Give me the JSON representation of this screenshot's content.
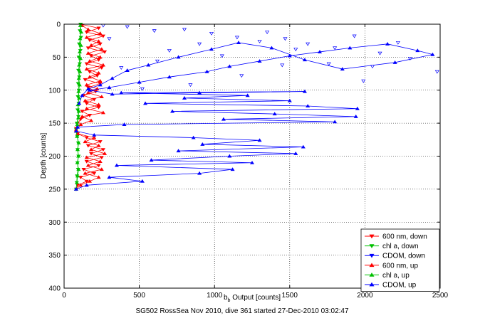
{
  "chart_data": {
    "type": "scatter",
    "xlabel": "b",
    "xlabel_sub": "b",
    "xlabel_rest": " Output [counts]",
    "ylabel": "Depth [counts]",
    "caption": "SG502 RossSea Nov 2010, dive 361 started 27-Dec-2010 03:02:47",
    "xlim": [
      0,
      2500
    ],
    "ylim": [
      0,
      400
    ],
    "y_reversed": true,
    "grid": true,
    "legend_position": "bottom-right",
    "xticks": [
      0,
      500,
      1000,
      1500,
      2000,
      2500
    ],
    "yticks": [
      0,
      50,
      100,
      150,
      200,
      250,
      300,
      350,
      400
    ],
    "series": [
      {
        "name": "600 nm, down",
        "color": "#ff0000",
        "marker": "triangle-down",
        "line": true,
        "points": [
          [
            110,
            0
          ],
          [
            230,
            6
          ],
          [
            150,
            12
          ],
          [
            260,
            18
          ],
          [
            170,
            24
          ],
          [
            240,
            30
          ],
          [
            160,
            36
          ],
          [
            270,
            42
          ],
          [
            180,
            48
          ],
          [
            230,
            54
          ],
          [
            150,
            60
          ],
          [
            250,
            66
          ],
          [
            170,
            72
          ],
          [
            220,
            78
          ],
          [
            140,
            84
          ],
          [
            240,
            90
          ],
          [
            160,
            96
          ],
          [
            210,
            102
          ],
          [
            130,
            108
          ],
          [
            200,
            114
          ],
          [
            150,
            120
          ],
          [
            230,
            126
          ],
          [
            120,
            132
          ],
          [
            170,
            138
          ],
          [
            110,
            144
          ],
          [
            90,
            150
          ],
          [
            80,
            158
          ],
          [
            90,
            166
          ],
          [
            150,
            172
          ],
          [
            240,
            178
          ],
          [
            160,
            184
          ],
          [
            260,
            190
          ],
          [
            180,
            196
          ],
          [
            250,
            202
          ],
          [
            150,
            208
          ],
          [
            230,
            214
          ],
          [
            130,
            220
          ],
          [
            200,
            226
          ],
          [
            110,
            232
          ],
          [
            150,
            238
          ],
          [
            90,
            244
          ],
          [
            80,
            250
          ]
        ]
      },
      {
        "name": "chl a, down",
        "color": "#00c000",
        "marker": "triangle-down",
        "line": true,
        "points": [
          [
            110,
            0
          ],
          [
            105,
            10
          ],
          [
            112,
            20
          ],
          [
            100,
            30
          ],
          [
            108,
            40
          ],
          [
            98,
            50
          ],
          [
            104,
            60
          ],
          [
            95,
            70
          ],
          [
            101,
            80
          ],
          [
            93,
            90
          ],
          [
            99,
            100
          ],
          [
            92,
            110
          ],
          [
            97,
            120
          ],
          [
            90,
            130
          ],
          [
            95,
            140
          ],
          [
            85,
            150
          ],
          [
            80,
            160
          ],
          [
            88,
            170
          ],
          [
            94,
            180
          ],
          [
            90,
            190
          ],
          [
            96,
            200
          ],
          [
            89,
            210
          ],
          [
            93,
            220
          ],
          [
            86,
            230
          ],
          [
            84,
            240
          ],
          [
            80,
            250
          ]
        ]
      },
      {
        "name": "CDOM, down",
        "color": "#0000ff",
        "marker": "triangle-down",
        "line": false,
        "points": [
          [
            260,
            2
          ],
          [
            420,
            4
          ],
          [
            600,
            10
          ],
          [
            800,
            8
          ],
          [
            980,
            14
          ],
          [
            1150,
            20
          ],
          [
            1300,
            26
          ],
          [
            1470,
            22
          ],
          [
            1620,
            30
          ],
          [
            1800,
            36
          ],
          [
            1930,
            18
          ],
          [
            2100,
            44
          ],
          [
            2300,
            52
          ],
          [
            2480,
            72
          ],
          [
            1990,
            86
          ],
          [
            1450,
            62
          ],
          [
            1180,
            78
          ],
          [
            840,
            92
          ],
          [
            520,
            98
          ],
          [
            380,
            66
          ],
          [
            700,
            40
          ],
          [
            1050,
            48
          ],
          [
            1350,
            12
          ],
          [
            1760,
            60
          ],
          [
            2220,
            28
          ],
          [
            900,
            30
          ],
          [
            1540,
            38
          ],
          [
            300,
            22
          ],
          [
            620,
            56
          ],
          [
            2050,
            64
          ]
        ]
      },
      {
        "name": "600 nm, up",
        "color": "#ff0000",
        "marker": "triangle-up",
        "line": true,
        "points": [
          [
            80,
            250
          ],
          [
            110,
            244
          ],
          [
            170,
            238
          ],
          [
            230,
            232
          ],
          [
            140,
            226
          ],
          [
            250,
            220
          ],
          [
            160,
            214
          ],
          [
            240,
            208
          ],
          [
            150,
            202
          ],
          [
            270,
            196
          ],
          [
            180,
            190
          ],
          [
            230,
            184
          ],
          [
            140,
            178
          ],
          [
            200,
            172
          ],
          [
            90,
            166
          ],
          [
            80,
            160
          ],
          [
            110,
            152
          ],
          [
            180,
            146
          ],
          [
            120,
            140
          ],
          [
            260,
            134
          ],
          [
            150,
            128
          ],
          [
            230,
            122
          ],
          [
            140,
            116
          ],
          [
            250,
            110
          ],
          [
            160,
            104
          ],
          [
            220,
            98
          ],
          [
            150,
            92
          ],
          [
            240,
            86
          ],
          [
            170,
            80
          ],
          [
            230,
            74
          ],
          [
            150,
            68
          ],
          [
            260,
            62
          ],
          [
            170,
            56
          ],
          [
            240,
            50
          ],
          [
            160,
            44
          ],
          [
            250,
            38
          ],
          [
            180,
            32
          ],
          [
            230,
            26
          ],
          [
            150,
            20
          ],
          [
            240,
            14
          ],
          [
            160,
            8
          ],
          [
            120,
            2
          ]
        ]
      },
      {
        "name": "chl a, up",
        "color": "#00c000",
        "marker": "triangle-up",
        "line": true,
        "points": [
          [
            80,
            250
          ],
          [
            85,
            240
          ],
          [
            90,
            230
          ],
          [
            96,
            220
          ],
          [
            88,
            210
          ],
          [
            95,
            200
          ],
          [
            90,
            190
          ],
          [
            97,
            180
          ],
          [
            86,
            170
          ],
          [
            80,
            162
          ],
          [
            88,
            152
          ],
          [
            94,
            142
          ],
          [
            98,
            132
          ],
          [
            92,
            122
          ],
          [
            100,
            112
          ],
          [
            96,
            102
          ],
          [
            103,
            92
          ],
          [
            98,
            82
          ],
          [
            106,
            72
          ],
          [
            100,
            62
          ],
          [
            109,
            52
          ],
          [
            104,
            42
          ],
          [
            112,
            32
          ],
          [
            106,
            22
          ],
          [
            114,
            12
          ],
          [
            108,
            2
          ]
        ]
      },
      {
        "name": "CDOM, up",
        "color": "#0000ff",
        "marker": "triangle-up",
        "line": true,
        "points": [
          [
            80,
            250
          ],
          [
            150,
            244
          ],
          [
            520,
            238
          ],
          [
            300,
            232
          ],
          [
            900,
            226
          ],
          [
            1120,
            220
          ],
          [
            350,
            214
          ],
          [
            1250,
            210
          ],
          [
            580,
            206
          ],
          [
            1100,
            200
          ],
          [
            1540,
            196
          ],
          [
            760,
            192
          ],
          [
            1590,
            186
          ],
          [
            920,
            182
          ],
          [
            1300,
            176
          ],
          [
            860,
            172
          ],
          [
            200,
            168
          ],
          [
            80,
            162
          ],
          [
            90,
            156
          ],
          [
            400,
            152
          ],
          [
            1800,
            148
          ],
          [
            1060,
            144
          ],
          [
            1940,
            140
          ],
          [
            1400,
            136
          ],
          [
            720,
            132
          ],
          [
            1950,
            128
          ],
          [
            1620,
            124
          ],
          [
            540,
            120
          ],
          [
            1500,
            116
          ],
          [
            800,
            112
          ],
          [
            1220,
            108
          ],
          [
            380,
            104
          ],
          [
            1600,
            102
          ],
          [
            900,
            104
          ],
          [
            320,
            106
          ],
          [
            170,
            100
          ],
          [
            300,
            96
          ],
          [
            500,
            88
          ],
          [
            700,
            80
          ],
          [
            950,
            72
          ],
          [
            1100,
            64
          ],
          [
            1300,
            56
          ],
          [
            1500,
            48
          ],
          [
            1700,
            42
          ],
          [
            1900,
            36
          ],
          [
            2150,
            30
          ],
          [
            2350,
            40
          ],
          [
            2450,
            46
          ],
          [
            2200,
            58
          ],
          [
            1850,
            68
          ],
          [
            1600,
            54
          ],
          [
            1380,
            36
          ],
          [
            1160,
            28
          ],
          [
            980,
            38
          ],
          [
            760,
            50
          ],
          [
            560,
            62
          ],
          [
            420,
            70
          ],
          [
            320,
            82
          ],
          [
            240,
            92
          ],
          [
            160,
            98
          ],
          [
            120,
            108
          ],
          [
            100,
            120
          ]
        ]
      }
    ]
  }
}
